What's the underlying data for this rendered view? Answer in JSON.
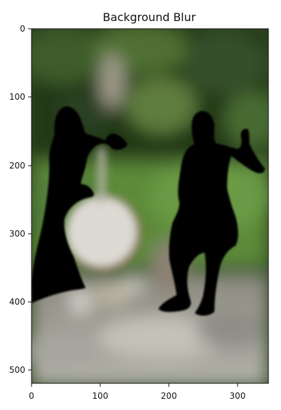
{
  "chart_data": {
    "type": "heatmap",
    "title": "Background Blur",
    "xlabel": "",
    "ylabel": "",
    "xlim": [
      -0.5,
      344.5
    ],
    "ylim": [
      519.5,
      -0.5
    ],
    "xticks": [
      0,
      100,
      200,
      300
    ],
    "yticks": [
      0,
      100,
      200,
      300,
      400,
      500
    ],
    "grid": false,
    "image_description_colors": {
      "foliage_dark": "#1f3116",
      "foliage_mid": "#3b5a2a",
      "grass": "#5f8a3a",
      "path": "#9a9a92",
      "silhouette": "#000000",
      "banjo": "#d8d6cf"
    }
  }
}
